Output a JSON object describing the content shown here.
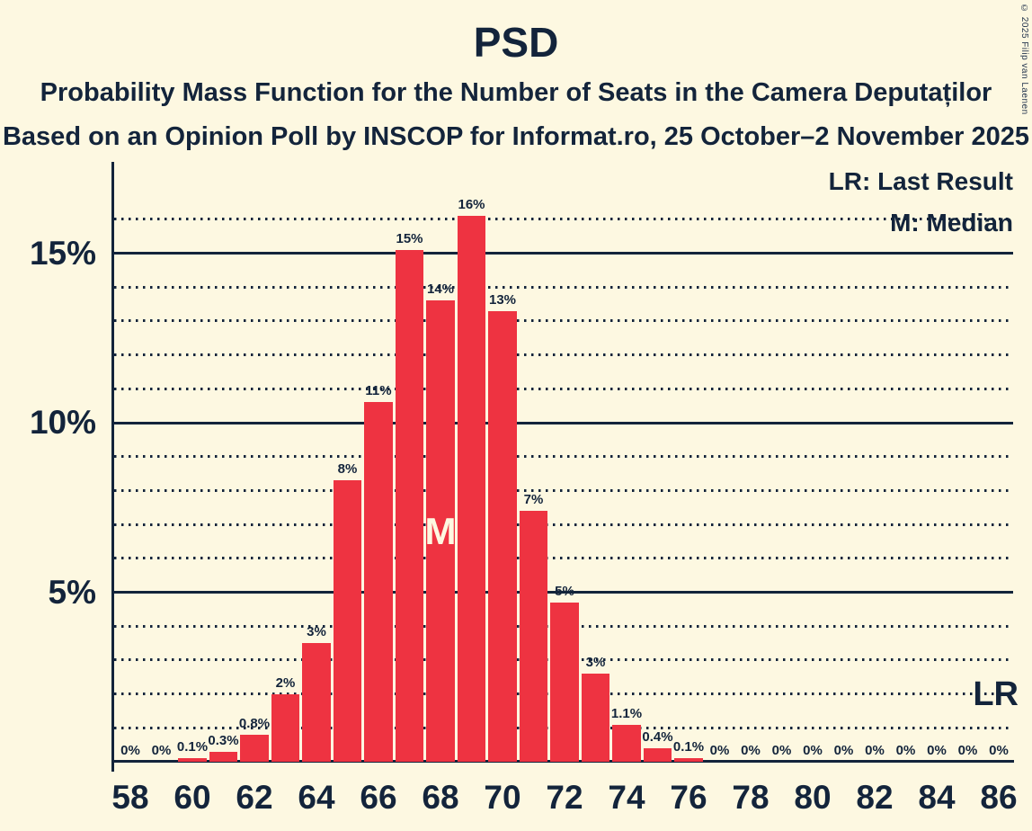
{
  "header": {
    "title": "PSD",
    "subtitle1": "Probability Mass Function for the Number of Seats in the Camera Deputaților",
    "subtitle2": "Based on an Opinion Poll by INSCOP for Informat.ro, 25 October–2 November 2025"
  },
  "legend": {
    "lr": "LR: Last Result",
    "m": "M: Median"
  },
  "markers": {
    "median": "M",
    "last_result": "LR"
  },
  "copyright": "© 2025 Filip van Laenen",
  "colors": {
    "background": "#FDF8E1",
    "text": "#13243B",
    "bar": "#EE3341",
    "bar_label_inside": "#FDF8E1"
  },
  "chart_data": {
    "type": "bar",
    "title": "PSD",
    "xlabel": "",
    "ylabel": "",
    "grid": true,
    "legend_position": "top-right",
    "ylim": [
      0,
      17.7
    ],
    "y_ticks": [
      {
        "pct": 5,
        "label": "5%"
      },
      {
        "pct": 10,
        "label": "10%"
      },
      {
        "pct": 15,
        "label": "15%"
      }
    ],
    "x_ticks": [
      "58",
      "60",
      "62",
      "64",
      "66",
      "68",
      "70",
      "72",
      "74",
      "76",
      "78",
      "80",
      "82",
      "84",
      "86"
    ],
    "seats": [
      58,
      59,
      60,
      61,
      62,
      63,
      64,
      65,
      66,
      67,
      68,
      69,
      70,
      71,
      72,
      73,
      74,
      75,
      76,
      77,
      78,
      79,
      80,
      81,
      82,
      83,
      84,
      85,
      86
    ],
    "labels": [
      "0%",
      "0%",
      "0.1%",
      "0.3%",
      "0.8%",
      "2%",
      "3%",
      "8%",
      "11%",
      "15%",
      "14%",
      "16%",
      "13%",
      "7%",
      "5%",
      "3%",
      "1.1%",
      "0.4%",
      "0.1%",
      "0%",
      "0%",
      "0%",
      "0%",
      "0%",
      "0%",
      "0%",
      "0%",
      "0%",
      "0%"
    ],
    "values": [
      0,
      0,
      0.1,
      0.3,
      0.8,
      2,
      3,
      8,
      11,
      15,
      14,
      16,
      13,
      7,
      5,
      3,
      1.1,
      0.4,
      0.1,
      0,
      0,
      0,
      0,
      0,
      0,
      0,
      0,
      0,
      0
    ],
    "render_heights": [
      0,
      0,
      0.1,
      0.3,
      0.8,
      2,
      3.5,
      8.3,
      10.6,
      15.1,
      13.6,
      16.1,
      13.3,
      7.4,
      4.7,
      2.6,
      1.1,
      0.4,
      0.1,
      0,
      0,
      0,
      0,
      0,
      0,
      0,
      0,
      0,
      0
    ],
    "median_seat": 68,
    "last_result_line_pct": 2
  }
}
